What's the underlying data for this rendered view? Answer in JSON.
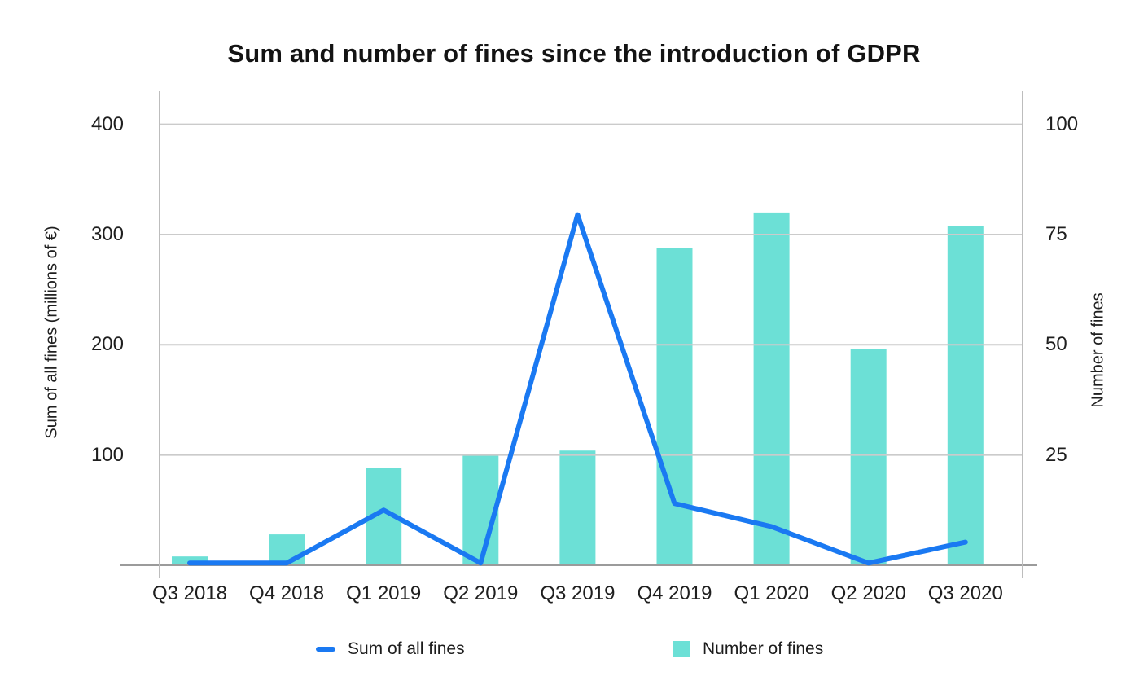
{
  "title": "Sum and number of fines since the introduction of GDPR",
  "chart_data": {
    "type": "combo",
    "title": "Sum and number of fines since the introduction of GDPR",
    "categories": [
      "Q3 2018",
      "Q4 2018",
      "Q1 2019",
      "Q2 2019",
      "Q3 2019",
      "Q4 2019",
      "Q1 2020",
      "Q2 2020",
      "Q3 2020"
    ],
    "series": [
      {
        "name": "Sum of all fines",
        "type": "line",
        "axis": "left",
        "color": "#1a79f2",
        "values": [
          2,
          2,
          50,
          2,
          318,
          56,
          35,
          2,
          21
        ]
      },
      {
        "name": "Number of fines",
        "type": "bar",
        "axis": "right",
        "color": "#6ce0d6",
        "values": [
          2,
          7,
          22,
          25,
          26,
          72,
          80,
          49,
          77
        ]
      }
    ],
    "y_left": {
      "label": "Sum of all fines (millions of €)",
      "ticks": [
        400,
        300,
        200,
        100
      ],
      "range": [
        0,
        430
      ]
    },
    "y_right": {
      "label": "Number of fines",
      "ticks": [
        100,
        75,
        50,
        25
      ],
      "range": [
        0,
        107.5
      ]
    },
    "grid": true,
    "legend_position": "bottom",
    "colors": {
      "gridline": "#cbcbcb",
      "axis_line": "#bdbdbd",
      "baseline": "#9b9b9b",
      "text": "#1f1f1f"
    }
  }
}
